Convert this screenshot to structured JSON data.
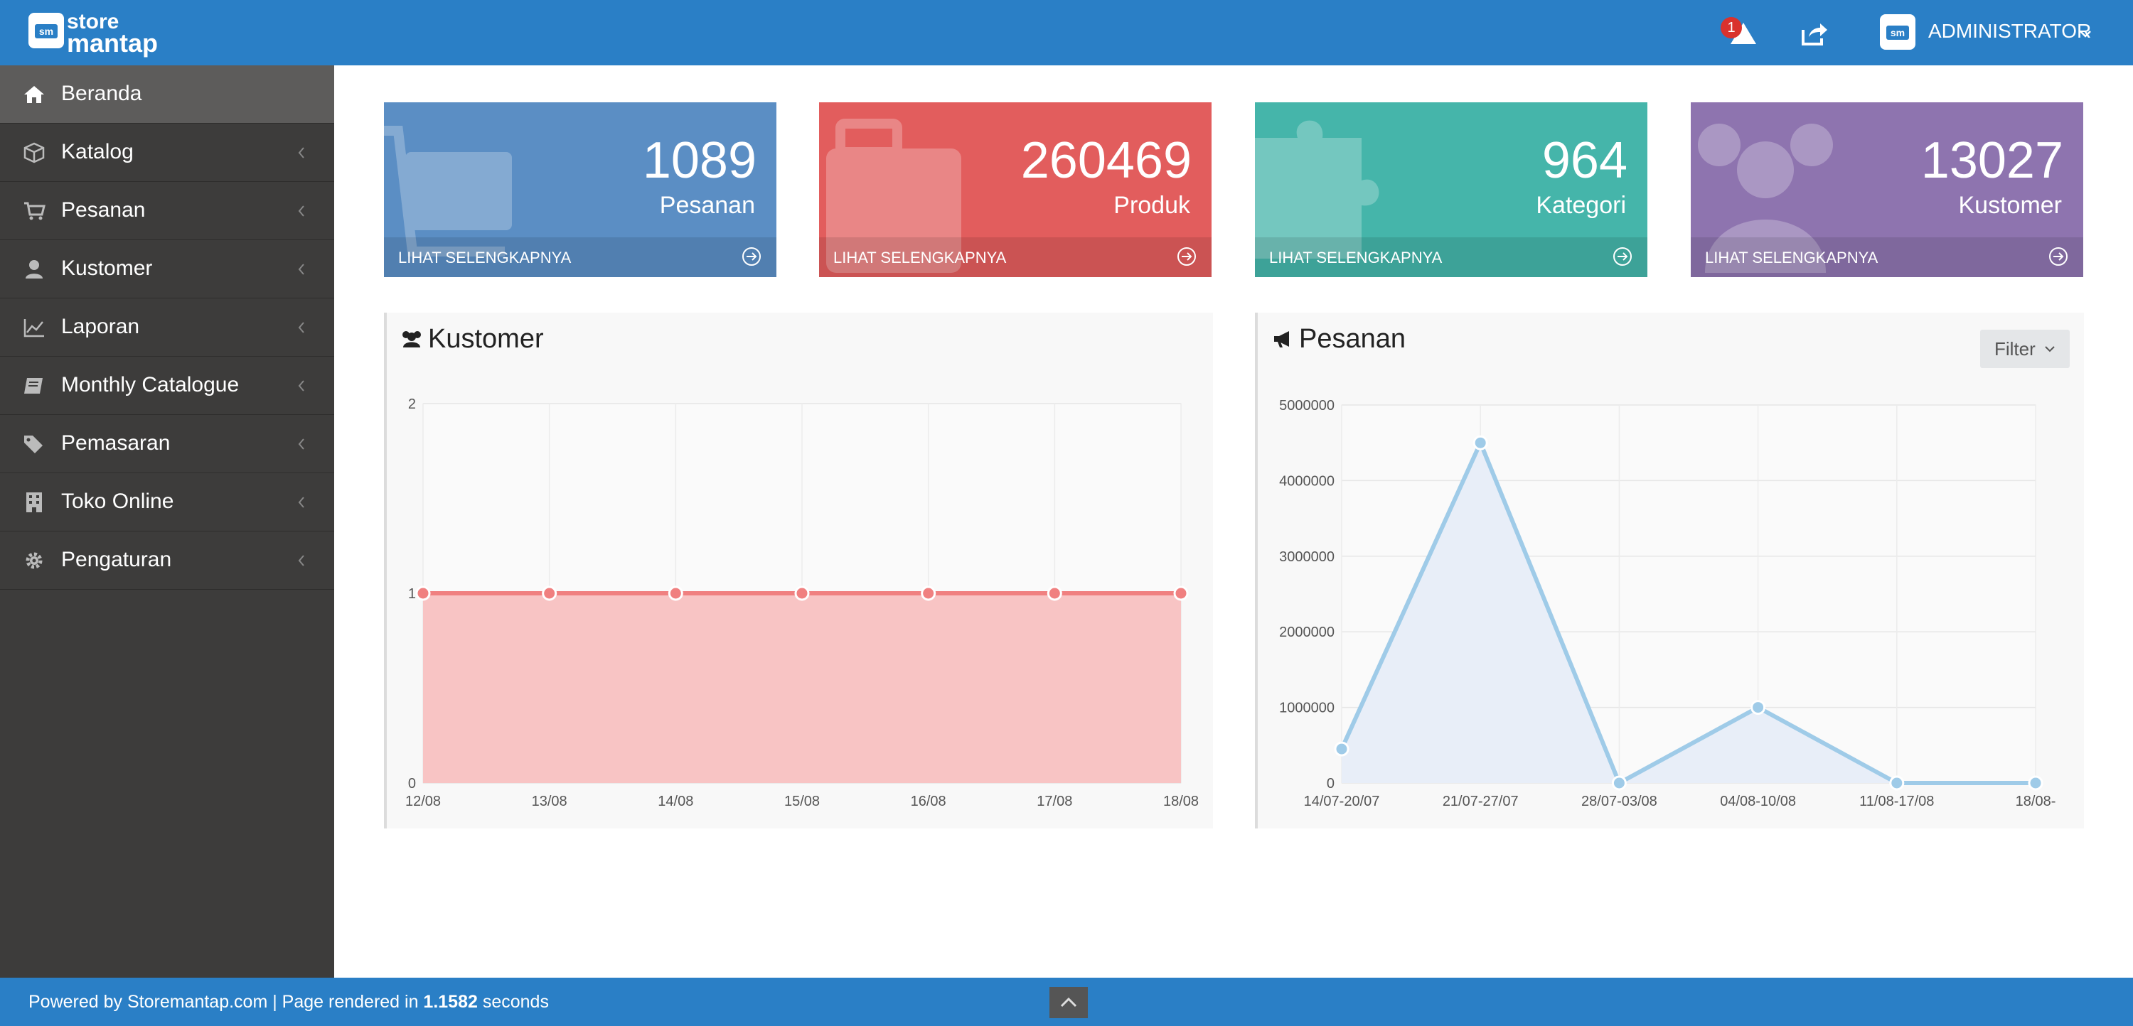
{
  "header": {
    "logo_line1": "store",
    "logo_line2": "mantap",
    "logo_badge": "sm",
    "notification_count": "1",
    "user_name": "ADMINISTRATOR"
  },
  "sidebar": {
    "items": [
      {
        "label": "Beranda",
        "icon": "home-icon",
        "active": true
      },
      {
        "label": "Katalog",
        "icon": "cube-icon"
      },
      {
        "label": "Pesanan",
        "icon": "cart-icon"
      },
      {
        "label": "Kustomer",
        "icon": "user-icon"
      },
      {
        "label": "Laporan",
        "icon": "line-chart-icon"
      },
      {
        "label": "Monthly Catalogue",
        "icon": "book-icon"
      },
      {
        "label": "Pemasaran",
        "icon": "tags-icon"
      },
      {
        "label": "Toko Online",
        "icon": "building-icon"
      },
      {
        "label": "Pengaturan",
        "icon": "gear-icon"
      }
    ]
  },
  "tiles": [
    {
      "value": "1089",
      "label": "Pesanan",
      "more": "LIHAT SELENGKAPNYA",
      "color": "#5b8ec4",
      "icon": "cart-icon"
    },
    {
      "value": "260469",
      "label": "Produk",
      "more": "LIHAT SELENGKAPNYA",
      "color": "#e25d5d",
      "icon": "briefcase-icon"
    },
    {
      "value": "964",
      "label": "Kategori",
      "more": "LIHAT SELENGKAPNYA",
      "color": "#45b5aa",
      "icon": "puzzle-icon"
    },
    {
      "value": "13027",
      "label": "Kustomer",
      "more": "LIHAT SELENGKAPNYA",
      "color": "#8e74af",
      "icon": "users-icon"
    }
  ],
  "panels": {
    "kustomer_title": "Kustomer",
    "pesanan_title": "Pesanan",
    "filter_label": "Filter"
  },
  "chart_data": [
    {
      "type": "area",
      "title": "Kustomer",
      "categories": [
        "12/08",
        "13/08",
        "14/08",
        "15/08",
        "16/08",
        "17/08",
        "18/08"
      ],
      "values": [
        1,
        1,
        1,
        1,
        1,
        1,
        1
      ],
      "ylim": [
        0,
        2
      ],
      "yticks": [
        "0",
        "1",
        "2"
      ],
      "color": "#f08080",
      "fill": "#f8c4c4",
      "grid": true
    },
    {
      "type": "area",
      "title": "Pesanan",
      "categories": [
        "14/07-20/07",
        "21/07-27/07",
        "28/07-03/08",
        "04/08-10/08",
        "11/08-17/08",
        "18/08-"
      ],
      "values": [
        450000,
        4500000,
        0,
        1000000,
        0,
        0
      ],
      "ylim": [
        0,
        5000000
      ],
      "yticks": [
        "0",
        "1000000",
        "2000000",
        "3000000",
        "4000000",
        "5000000"
      ],
      "color": "#9fcbe8",
      "fill": "#e8eef8",
      "grid": true
    }
  ],
  "footer": {
    "prefix": "Powered by Storemantap.com | Page rendered in ",
    "time": "1.1582",
    "suffix": " seconds"
  }
}
